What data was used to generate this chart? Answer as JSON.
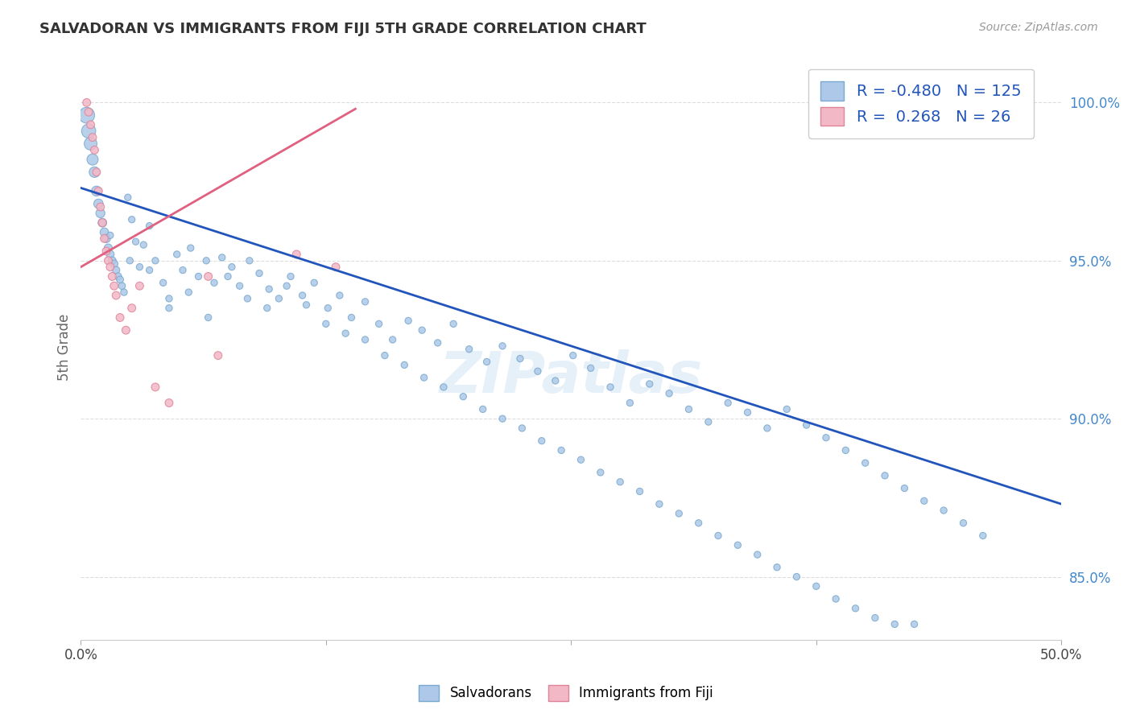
{
  "title": "SALVADORAN VS IMMIGRANTS FROM FIJI 5TH GRADE CORRELATION CHART",
  "source": "Source: ZipAtlas.com",
  "ylabel": "5th Grade",
  "xlim": [
    0.0,
    50.0
  ],
  "ylim": [
    83.0,
    101.5
  ],
  "y_ticks": [
    85.0,
    90.0,
    95.0,
    100.0
  ],
  "y_tick_labels": [
    "85.0%",
    "90.0%",
    "95.0%",
    "100.0%"
  ],
  "x_ticks": [
    0.0,
    12.5,
    25.0,
    37.5,
    50.0
  ],
  "x_tick_labels": [
    "0.0%",
    "",
    "",
    "",
    "50.0%"
  ],
  "blue_R": -0.48,
  "blue_N": 125,
  "pink_R": 0.268,
  "pink_N": 26,
  "blue_color": "#adc8e8",
  "blue_edge_color": "#7aaad0",
  "pink_color": "#f2b8c6",
  "pink_edge_color": "#e0849a",
  "blue_line_color": "#2255bb",
  "pink_line_color": "#e06080",
  "legend_blue_label": "Salvadorans",
  "legend_pink_label": "Immigrants from Fiji",
  "watermark": "ZIPatlas",
  "blue_line_x": [
    0.0,
    50.0
  ],
  "blue_line_y": [
    97.3,
    87.3
  ],
  "pink_line_x": [
    0.0,
    14.0
  ],
  "pink_line_y": [
    94.8,
    99.8
  ],
  "blue_scatter_x": [
    0.3,
    0.4,
    0.5,
    0.6,
    0.7,
    0.8,
    0.9,
    1.0,
    1.1,
    1.2,
    1.3,
    1.4,
    1.5,
    1.6,
    1.7,
    1.8,
    1.9,
    2.0,
    2.1,
    2.2,
    2.4,
    2.6,
    2.8,
    3.0,
    3.2,
    3.5,
    3.8,
    4.2,
    4.5,
    4.9,
    5.2,
    5.6,
    6.0,
    6.4,
    6.8,
    7.2,
    7.7,
    8.1,
    8.6,
    9.1,
    9.6,
    10.1,
    10.7,
    11.3,
    11.9,
    12.6,
    13.2,
    13.8,
    14.5,
    15.2,
    15.9,
    16.7,
    17.4,
    18.2,
    19.0,
    19.8,
    20.7,
    21.5,
    22.4,
    23.3,
    24.2,
    25.1,
    26.0,
    27.0,
    28.0,
    29.0,
    30.0,
    31.0,
    32.0,
    33.0,
    34.0,
    35.0,
    36.0,
    37.0,
    38.0,
    39.0,
    40.0,
    41.0,
    42.0,
    43.0,
    44.0,
    45.0,
    46.0,
    1.5,
    2.5,
    3.5,
    4.5,
    5.5,
    6.5,
    7.5,
    8.5,
    9.5,
    10.5,
    11.5,
    12.5,
    13.5,
    14.5,
    15.5,
    16.5,
    17.5,
    18.5,
    19.5,
    20.5,
    21.5,
    22.5,
    23.5,
    24.5,
    25.5,
    26.5,
    27.5,
    28.5,
    29.5,
    30.5,
    31.5,
    32.5,
    33.5,
    34.5,
    35.5,
    36.5,
    37.5,
    38.5,
    39.5,
    40.5,
    41.5,
    42.5
  ],
  "blue_scatter_y": [
    99.6,
    99.1,
    98.7,
    98.2,
    97.8,
    97.2,
    96.8,
    96.5,
    96.2,
    95.9,
    95.7,
    95.4,
    95.2,
    95.0,
    94.9,
    94.7,
    94.5,
    94.4,
    94.2,
    94.0,
    97.0,
    96.3,
    95.6,
    94.8,
    95.5,
    96.1,
    95.0,
    94.3,
    93.8,
    95.2,
    94.7,
    95.4,
    94.5,
    95.0,
    94.3,
    95.1,
    94.8,
    94.2,
    95.0,
    94.6,
    94.1,
    93.8,
    94.5,
    93.9,
    94.3,
    93.5,
    93.9,
    93.2,
    93.7,
    93.0,
    92.5,
    93.1,
    92.8,
    92.4,
    93.0,
    92.2,
    91.8,
    92.3,
    91.9,
    91.5,
    91.2,
    92.0,
    91.6,
    91.0,
    90.5,
    91.1,
    90.8,
    90.3,
    89.9,
    90.5,
    90.2,
    89.7,
    90.3,
    89.8,
    89.4,
    89.0,
    88.6,
    88.2,
    87.8,
    87.4,
    87.1,
    86.7,
    86.3,
    95.8,
    95.0,
    94.7,
    93.5,
    94.0,
    93.2,
    94.5,
    93.8,
    93.5,
    94.2,
    93.6,
    93.0,
    92.7,
    92.5,
    92.0,
    91.7,
    91.3,
    91.0,
    90.7,
    90.3,
    90.0,
    89.7,
    89.3,
    89.0,
    88.7,
    88.3,
    88.0,
    87.7,
    87.3,
    87.0,
    86.7,
    86.3,
    86.0,
    85.7,
    85.3,
    85.0,
    84.7,
    84.3,
    84.0,
    83.7,
    83.5,
    83.5
  ],
  "blue_scatter_sizes": [
    200,
    160,
    130,
    100,
    90,
    80,
    70,
    65,
    60,
    58,
    55,
    52,
    50,
    48,
    46,
    44,
    42,
    40,
    38,
    36,
    35,
    35,
    35,
    35,
    35,
    35,
    35,
    35,
    35,
    35,
    35,
    35,
    35,
    35,
    35,
    35,
    35,
    35,
    35,
    35,
    35,
    35,
    35,
    35,
    35,
    35,
    35,
    35,
    35,
    35,
    35,
    35,
    35,
    35,
    35,
    35,
    35,
    35,
    35,
    35,
    35,
    35,
    35,
    35,
    35,
    35,
    35,
    35,
    35,
    35,
    35,
    35,
    35,
    35,
    35,
    35,
    35,
    35,
    35,
    35,
    35,
    35,
    35,
    35,
    35,
    35,
    35,
    35,
    35,
    35,
    35,
    35,
    35,
    35,
    35,
    35,
    35,
    35,
    35,
    35,
    35,
    35,
    35,
    35,
    35,
    35,
    35,
    35,
    35,
    35,
    35,
    35,
    35,
    35,
    35,
    35,
    35,
    35,
    35,
    35,
    35,
    35,
    35,
    35,
    35
  ],
  "pink_scatter_x": [
    0.3,
    0.4,
    0.5,
    0.6,
    0.7,
    0.8,
    0.9,
    1.0,
    1.1,
    1.2,
    1.3,
    1.4,
    1.5,
    1.6,
    1.7,
    1.8,
    2.0,
    2.3,
    2.6,
    3.0,
    3.8,
    4.5,
    6.5,
    11.0,
    13.0,
    7.0
  ],
  "pink_scatter_y": [
    100.0,
    99.7,
    99.3,
    98.9,
    98.5,
    97.8,
    97.2,
    96.7,
    96.2,
    95.7,
    95.3,
    95.0,
    94.8,
    94.5,
    94.2,
    93.9,
    93.2,
    92.8,
    93.5,
    94.2,
    91.0,
    90.5,
    94.5,
    95.2,
    94.8,
    92.0
  ],
  "pink_scatter_sizes": [
    50,
    50,
    50,
    50,
    50,
    50,
    50,
    50,
    50,
    50,
    50,
    50,
    50,
    50,
    50,
    50,
    50,
    50,
    50,
    50,
    50,
    50,
    50,
    50,
    50,
    50
  ]
}
